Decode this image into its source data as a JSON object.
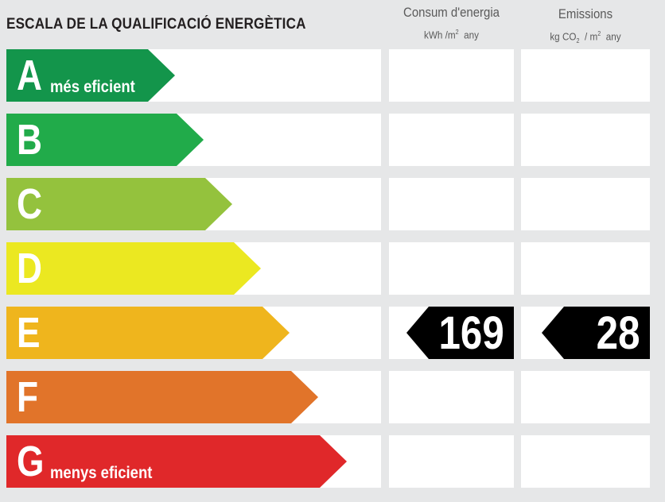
{
  "title": "ESCALA DE LA QUALIFICACIÓ ENERGÈTICA",
  "columns": {
    "consum": {
      "title": "Consum d'energia",
      "unit_prefix": "kWh /m",
      "unit_sup": "2",
      "unit_suffix": "any"
    },
    "emissions": {
      "title": "Emissions",
      "unit_prefix": "kg CO",
      "unit_sub": "2",
      "unit_mid": "/ m",
      "unit_sup": "2",
      "unit_suffix": "any"
    }
  },
  "classes": [
    {
      "letter": "A",
      "label": "més eficient",
      "color": "#13954b"
    },
    {
      "letter": "B",
      "label": "",
      "color": "#21ab4a"
    },
    {
      "letter": "C",
      "label": "",
      "color": "#94c23d"
    },
    {
      "letter": "D",
      "label": "",
      "color": "#ebe821"
    },
    {
      "letter": "E",
      "label": "",
      "color": "#efb51d"
    },
    {
      "letter": "F",
      "label": "",
      "color": "#e1742a"
    },
    {
      "letter": "G",
      "label": "menys eficient",
      "color": "#e0282a"
    }
  ],
  "rating": {
    "class": "E",
    "consum_value": "169",
    "emissions_value": "28"
  }
}
